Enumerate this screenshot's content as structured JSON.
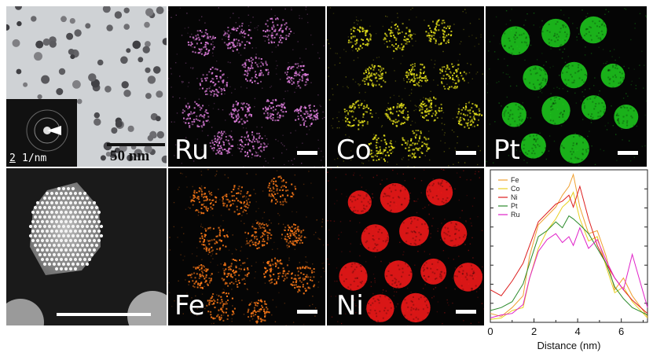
{
  "tem": {
    "scale_label": "50 nm",
    "inset_scale": "2",
    "inset_unit": "1/nm"
  },
  "maps": [
    {
      "key": "ru",
      "label": "Ru",
      "color": "#e27fe0"
    },
    {
      "key": "co",
      "label": "Co",
      "color": "#e6e21a"
    },
    {
      "key": "pt",
      "label": "Pt",
      "color": "#1fd01f"
    },
    {
      "key": "fe",
      "label": "Fe",
      "color": "#ff7a18"
    },
    {
      "key": "ni",
      "label": "Ni",
      "color": "#ff1a1a"
    }
  ],
  "chart_data": {
    "type": "line",
    "xlabel": "Distance (nm)",
    "ylabel": "",
    "xlim": [
      0,
      7.2
    ],
    "ylim": [
      0,
      1
    ],
    "x_ticks": [
      "0",
      "2",
      "4",
      "6"
    ],
    "legend_position": "top-left",
    "series": [
      {
        "name": "Fe",
        "color": "#f0a030",
        "x": [
          0,
          0.5,
          1,
          1.5,
          1.8,
          2.2,
          2.6,
          3,
          3.3,
          3.6,
          3.8,
          4.1,
          4.5,
          4.9,
          5.3,
          5.7,
          6.1,
          6.5,
          7.2
        ],
        "y": [
          0.06,
          0.04,
          0.1,
          0.18,
          0.45,
          0.66,
          0.72,
          0.78,
          0.86,
          0.92,
          1.0,
          0.78,
          0.6,
          0.62,
          0.45,
          0.22,
          0.3,
          0.18,
          0.04
        ]
      },
      {
        "name": "Co",
        "color": "#e8d020",
        "x": [
          0,
          0.5,
          1,
          1.5,
          1.8,
          2.2,
          2.6,
          3,
          3.3,
          3.6,
          3.8,
          4.1,
          4.5,
          4.9,
          5.3,
          5.7,
          6.1,
          6.5,
          7.2
        ],
        "y": [
          0.02,
          0.03,
          0.08,
          0.1,
          0.3,
          0.5,
          0.62,
          0.7,
          0.78,
          0.82,
          0.88,
          0.7,
          0.55,
          0.58,
          0.38,
          0.2,
          0.24,
          0.14,
          0.03
        ]
      },
      {
        "name": "Ni",
        "color": "#dd1e1e",
        "x": [
          0,
          0.5,
          1,
          1.5,
          1.8,
          2.2,
          2.6,
          3,
          3.3,
          3.6,
          3.8,
          4.1,
          4.5,
          4.9,
          5.3,
          5.7,
          6.1,
          6.5,
          7.2
        ],
        "y": [
          0.22,
          0.18,
          0.28,
          0.4,
          0.52,
          0.68,
          0.74,
          0.8,
          0.82,
          0.86,
          0.78,
          0.92,
          0.7,
          0.52,
          0.4,
          0.3,
          0.22,
          0.15,
          0.06
        ]
      },
      {
        "name": "Pt",
        "color": "#2a8a2a",
        "x": [
          0,
          0.5,
          1,
          1.5,
          1.8,
          2.2,
          2.6,
          3,
          3.3,
          3.6,
          3.8,
          4.1,
          4.5,
          4.9,
          5.3,
          5.7,
          6.1,
          6.5,
          7.2
        ],
        "y": [
          0.08,
          0.1,
          0.14,
          0.26,
          0.4,
          0.58,
          0.62,
          0.68,
          0.64,
          0.72,
          0.7,
          0.66,
          0.6,
          0.5,
          0.4,
          0.24,
          0.16,
          0.1,
          0.05
        ]
      },
      {
        "name": "Ru",
        "color": "#e020c8",
        "x": [
          0,
          0.5,
          1,
          1.5,
          1.8,
          2.2,
          2.6,
          3,
          3.3,
          3.6,
          3.8,
          4.1,
          4.5,
          4.9,
          5.3,
          5.7,
          6.1,
          6.5,
          7.2
        ],
        "y": [
          0.03,
          0.05,
          0.06,
          0.12,
          0.3,
          0.48,
          0.56,
          0.6,
          0.54,
          0.58,
          0.52,
          0.64,
          0.5,
          0.56,
          0.42,
          0.3,
          0.22,
          0.46,
          0.1
        ]
      }
    ]
  }
}
